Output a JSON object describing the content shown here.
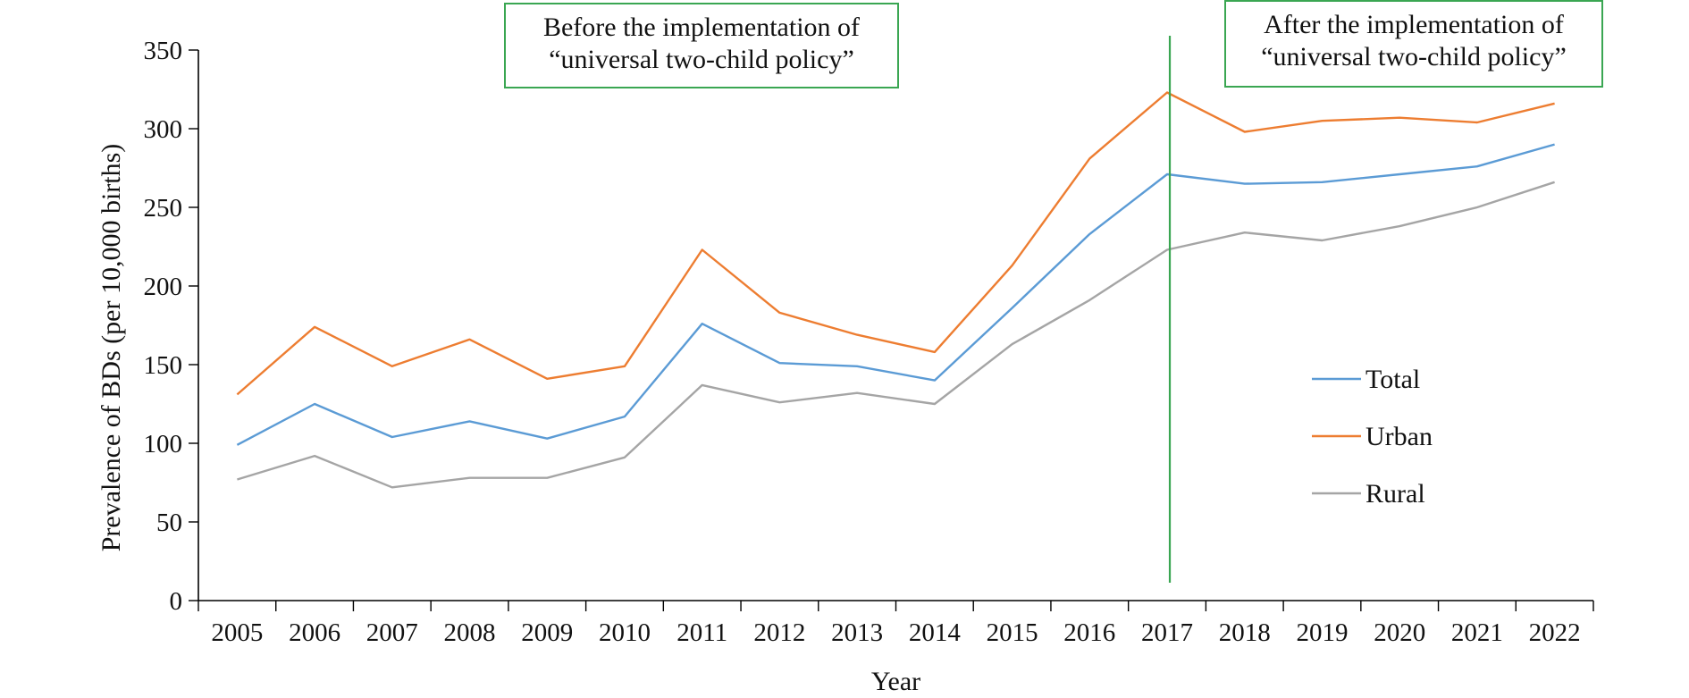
{
  "chart_data": {
    "type": "line",
    "xlabel": "Year",
    "ylabel": "Prevalence of BDs (per 10,000 births)",
    "ylim": [
      0,
      350
    ],
    "yticks": [
      0,
      50,
      100,
      150,
      200,
      250,
      300,
      350
    ],
    "categories": [
      "2005",
      "2006",
      "2007",
      "2008",
      "2009",
      "2010",
      "2011",
      "2012",
      "2013",
      "2014",
      "2015",
      "2016",
      "2017",
      "2018",
      "2019",
      "2020",
      "2021",
      "2022"
    ],
    "series": [
      {
        "name": "Total",
        "color": "#5b9bd5",
        "values": [
          99,
          125,
          104,
          114,
          103,
          117,
          176,
          151,
          149,
          140,
          186,
          233,
          271,
          265,
          266,
          271,
          276,
          290
        ]
      },
      {
        "name": "Urban",
        "color": "#ed7d31",
        "values": [
          131,
          174,
          149,
          166,
          141,
          149,
          223,
          183,
          169,
          158,
          213,
          281,
          323,
          298,
          305,
          307,
          304,
          316
        ]
      },
      {
        "name": "Rural",
        "color": "#a5a5a5",
        "values": [
          77,
          92,
          72,
          78,
          78,
          91,
          137,
          126,
          132,
          125,
          163,
          191,
          223,
          234,
          229,
          238,
          250,
          266
        ]
      }
    ],
    "legend_position": "right",
    "divider_after": "2017",
    "annotations": {
      "before": [
        "Before the implementation of",
        "“universal two-child policy”"
      ],
      "after": [
        "After the implementation of",
        "“universal two-child policy”"
      ]
    },
    "grid": false
  }
}
